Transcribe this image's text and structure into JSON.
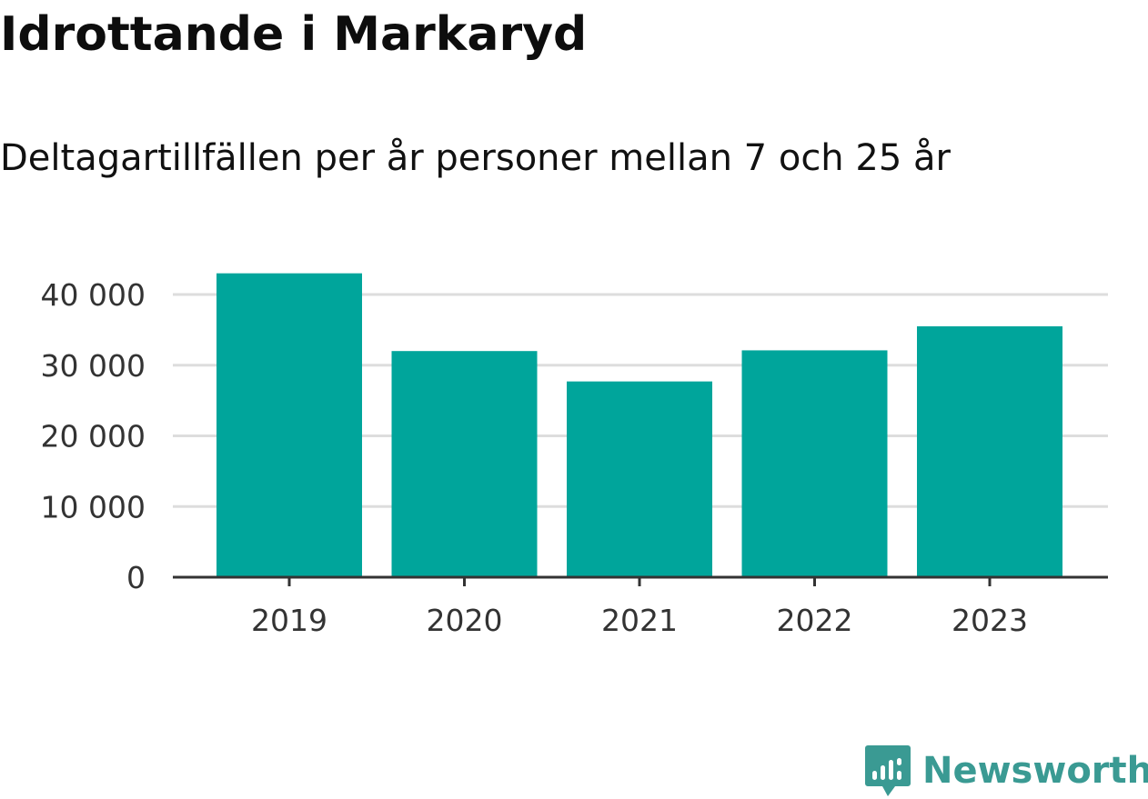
{
  "colors": {
    "bar": "#00a59b",
    "grid": "#dddddd",
    "axis": "#333333",
    "brand": "#3a9a93"
  },
  "chart_data": {
    "type": "bar",
    "title": "Idrottande i Markaryd",
    "subtitle": "Deltagartillfällen per år personer mellan 7 och 25 år",
    "categories": [
      "2019",
      "2020",
      "2021",
      "2022",
      "2023"
    ],
    "values": [
      43000,
      32000,
      27700,
      32100,
      35500
    ],
    "ylim": [
      0,
      45000
    ],
    "yticks": [
      0,
      10000,
      20000,
      30000,
      40000
    ],
    "ytick_labels": [
      "0",
      "10 000",
      "20 000",
      "30 000",
      "40 000"
    ],
    "grid": true,
    "legend": "none"
  },
  "brand": {
    "name": "Newsworthy",
    "icon": "newsworthy-logo-icon"
  }
}
